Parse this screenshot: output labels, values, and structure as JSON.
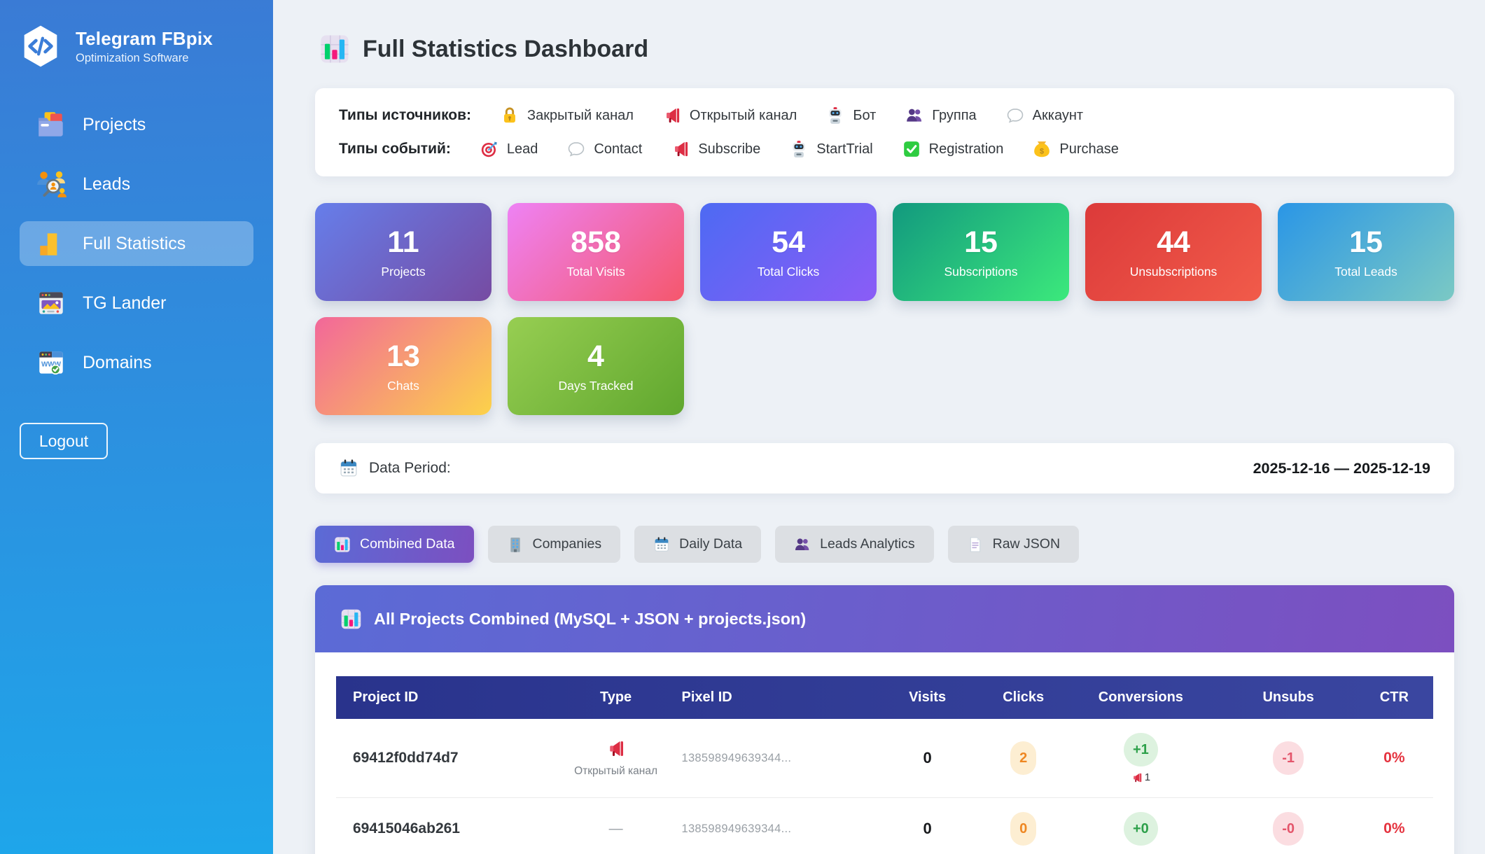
{
  "app": {
    "title": "Telegram FBpix",
    "subtitle": "Optimization Software",
    "logo_icon": "code-logo-icon"
  },
  "colors": {
    "sidebar_from": "#3a7bd5",
    "sidebar_to": "#1ea6ea",
    "accent_from": "#5b6bd6",
    "accent_to": "#7c4fc0",
    "thead_from": "#29338c",
    "thead_to": "#3a46a0",
    "clicks_bg": "#fdeed2",
    "clicks_text": "#ee8722",
    "conv_bg": "#ddf2df",
    "conv_text": "#2da04a",
    "unsubs_bg": "#fbdde1",
    "unsubs_text": "#e4556b",
    "ctr_red": "#e5333f"
  },
  "sidebar": {
    "items": [
      {
        "label": "Projects",
        "icon": "projects-icon",
        "active": false
      },
      {
        "label": "Leads",
        "icon": "leads-icon",
        "active": false
      },
      {
        "label": "Full Statistics",
        "icon": "statistics-icon",
        "active": true
      },
      {
        "label": "TG Lander",
        "icon": "tg-lander-icon",
        "active": false
      },
      {
        "label": "Domains",
        "icon": "domains-icon",
        "active": false
      }
    ],
    "logout_label": "Logout"
  },
  "header": {
    "title": "Full Statistics Dashboard",
    "icon": "bar-chart-icon"
  },
  "legend": {
    "rows": [
      {
        "label": "Типы источников:",
        "items": [
          {
            "icon": "lock-icon",
            "label": "Закрытый канал"
          },
          {
            "icon": "megaphone-icon",
            "label": "Открытый канал"
          },
          {
            "icon": "robot-icon",
            "label": "Бот"
          },
          {
            "icon": "group-icon",
            "label": "Группа"
          },
          {
            "icon": "speech-icon",
            "label": "Аккаунт"
          }
        ]
      },
      {
        "label": "Типы событий:",
        "items": [
          {
            "icon": "target-icon",
            "label": "Lead"
          },
          {
            "icon": "speech-icon",
            "label": "Contact"
          },
          {
            "icon": "megaphone-icon",
            "label": "Subscribe"
          },
          {
            "icon": "robot-icon",
            "label": "StartTrial"
          },
          {
            "icon": "check-icon",
            "label": "Registration"
          },
          {
            "icon": "moneybag-icon",
            "label": "Purchase"
          }
        ]
      }
    ]
  },
  "stat_cards": [
    {
      "value": "11",
      "label": "Projects",
      "from": "#667eea",
      "to": "#764ba2"
    },
    {
      "value": "858",
      "label": "Total Visits",
      "from": "#ee82f5",
      "to": "#f5576c"
    },
    {
      "value": "54",
      "label": "Total Clicks",
      "from": "#4d6af3",
      "to": "#8b5cf6"
    },
    {
      "value": "15",
      "label": "Subscriptions",
      "from": "#12997e",
      "to": "#3ce97c"
    },
    {
      "value": "44",
      "label": "Unsubscriptions",
      "from": "#dc3a3a",
      "to": "#f15b4a"
    },
    {
      "value": "15",
      "label": "Total Leads",
      "from": "#2a96e6",
      "to": "#7bc9c4"
    },
    {
      "value": "13",
      "label": "Chats",
      "from": "#f2679a",
      "to": "#fcd24a"
    },
    {
      "value": "4",
      "label": "Days Tracked",
      "from": "#97ce52",
      "to": "#60a72e"
    }
  ],
  "data_period": {
    "icon": "calendar-icon",
    "label": "Data Period:",
    "value": "2025-12-16 — 2025-12-19"
  },
  "tabs": [
    {
      "icon": "bar-chart-icon",
      "label": "Combined Data",
      "active": true
    },
    {
      "icon": "building-icon",
      "label": "Companies",
      "active": false
    },
    {
      "icon": "calendar-icon",
      "label": "Daily Data",
      "active": false
    },
    {
      "icon": "group-icon",
      "label": "Leads Analytics",
      "active": false
    },
    {
      "icon": "document-icon",
      "label": "Raw JSON",
      "active": false
    }
  ],
  "panel": {
    "icon": "bar-chart-icon",
    "title": "All Projects Combined (MySQL + JSON + projects.json)"
  },
  "table": {
    "columns": [
      "Project ID",
      "Type",
      "Pixel ID",
      "Visits",
      "Clicks",
      "Conversions",
      "Unsubs",
      "CTR"
    ],
    "rows": [
      {
        "project_id": "69412f0dd74d7",
        "type_icon": "megaphone-icon",
        "type_label": "Открытый канал",
        "pixel_id": "138598949639344...",
        "visits": "0",
        "clicks": "2",
        "conversions": "+1",
        "conv_detail_icon": "megaphone-icon",
        "conv_detail": "1",
        "unsubs": "-1",
        "ctr": "0%"
      },
      {
        "project_id": "69415046ab261",
        "type_icon": "",
        "type_label": "—",
        "pixel_id": "138598949639344...",
        "visits": "0",
        "clicks": "0",
        "conversions": "+0",
        "conv_detail_icon": "",
        "conv_detail": "",
        "unsubs": "-0",
        "ctr": "0%"
      }
    ]
  }
}
